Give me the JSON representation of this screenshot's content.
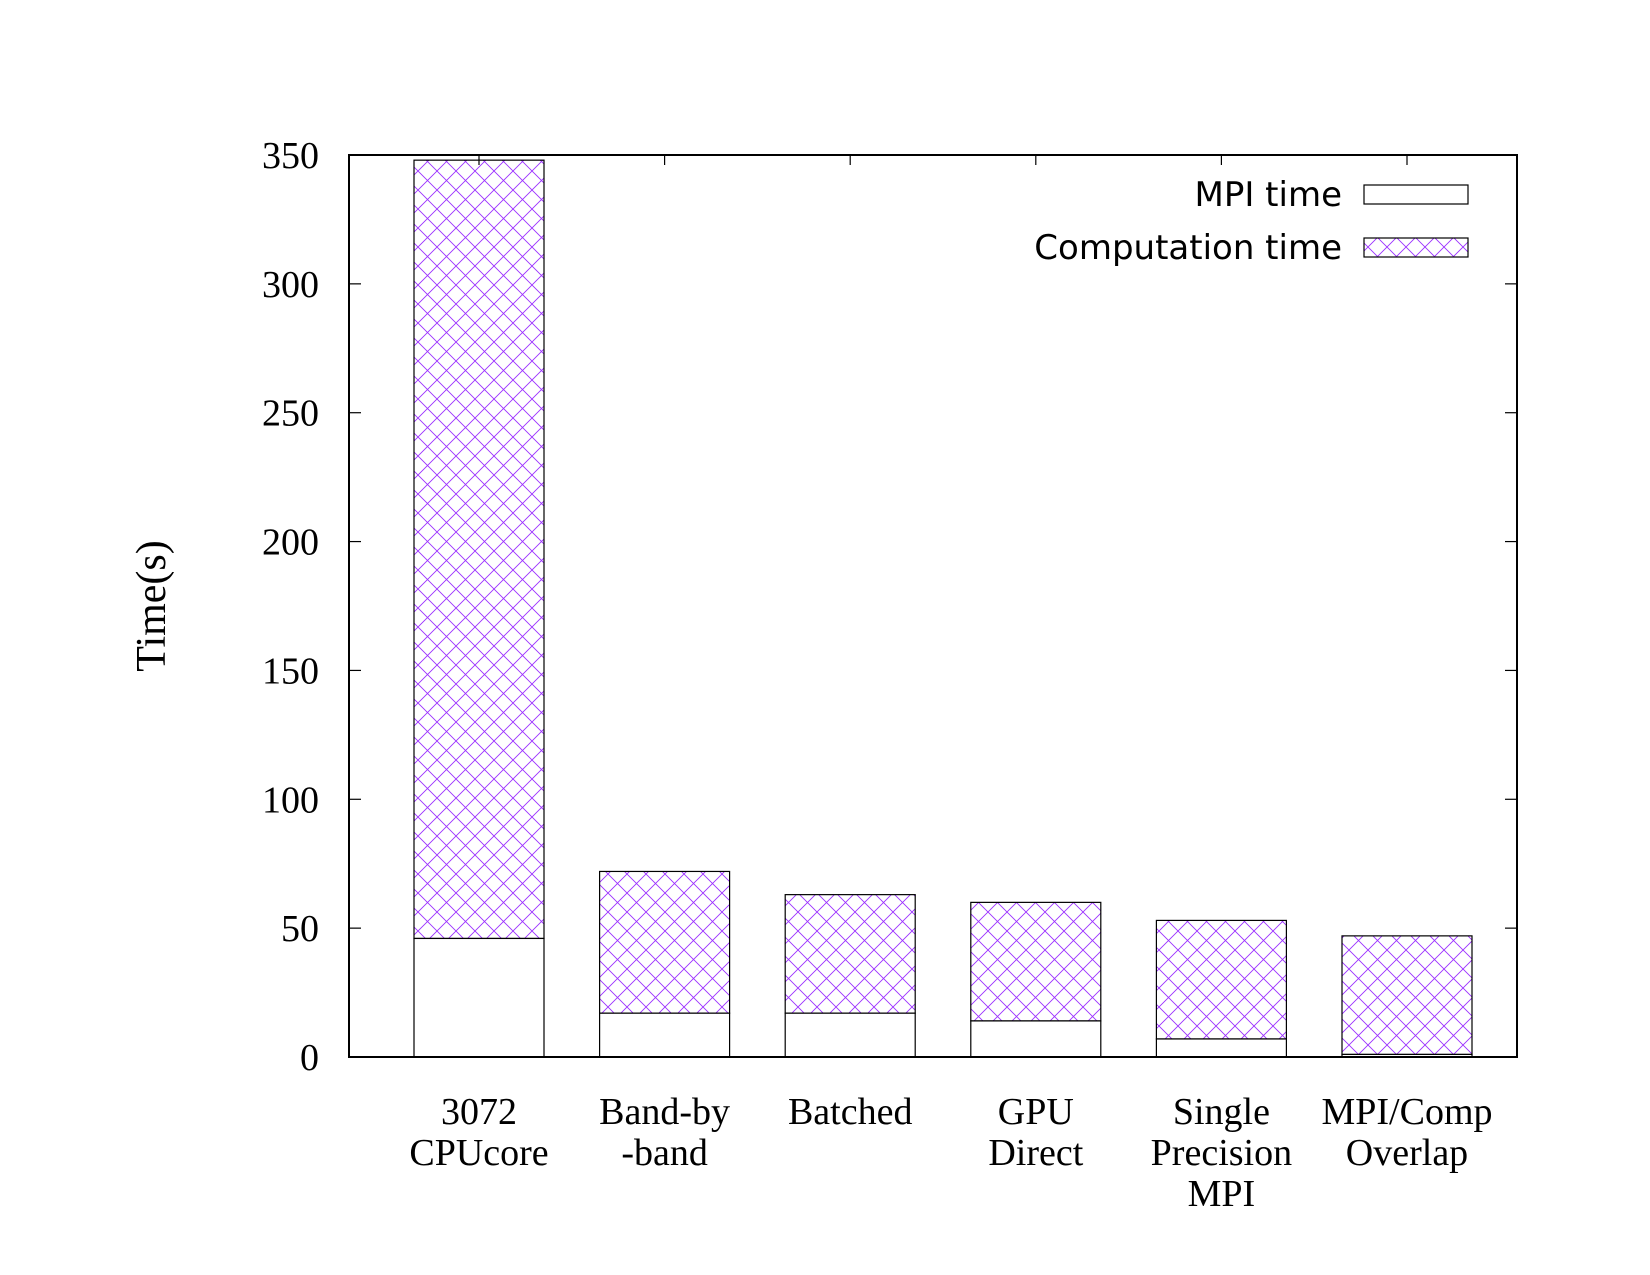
{
  "chart_data": {
    "type": "bar",
    "stacked": true,
    "title": "",
    "xlabel": "",
    "ylabel": "Time(s)",
    "ylim": [
      0,
      350
    ],
    "yticks": [
      0,
      50,
      100,
      150,
      200,
      250,
      300,
      350
    ],
    "grid": false,
    "legend_position": "top-right",
    "categories": [
      [
        "3072",
        "CPUcore"
      ],
      [
        "Band-by",
        "-band"
      ],
      [
        "Batched"
      ],
      [
        "GPU",
        "Direct"
      ],
      [
        "Single",
        "Precision",
        "MPI"
      ],
      [
        "MPI/Comp",
        "Overlap"
      ]
    ],
    "series": [
      {
        "name": "MPI time",
        "fill": "none",
        "values": [
          46,
          17,
          17,
          14,
          7,
          1
        ]
      },
      {
        "name": "Computation time",
        "fill": "crosshatch",
        "color": "#9b30ff",
        "values": [
          302,
          55,
          46,
          46,
          46,
          46
        ]
      }
    ]
  }
}
